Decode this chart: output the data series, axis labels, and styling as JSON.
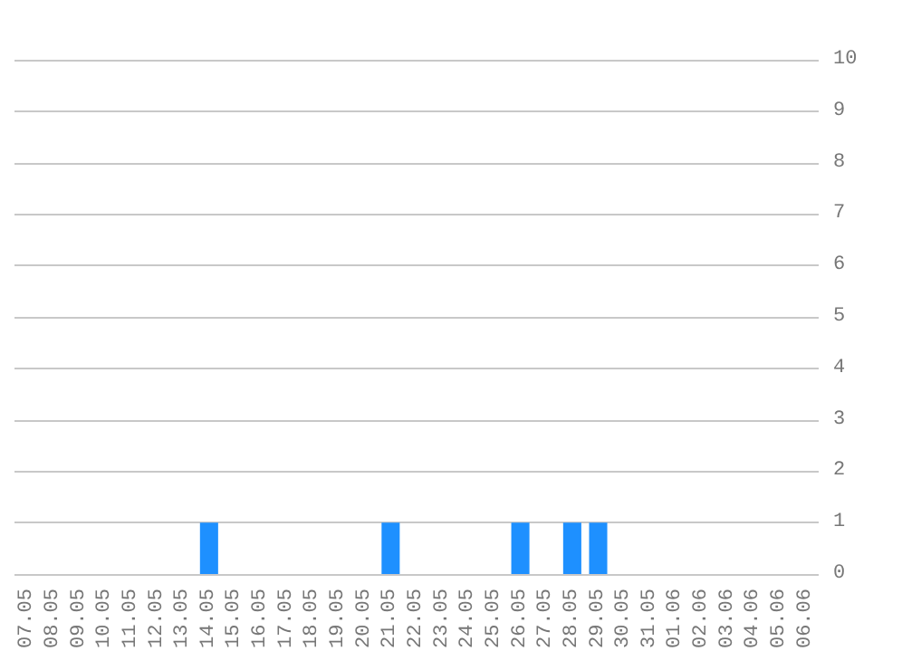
{
  "chart_data": {
    "type": "bar",
    "categories": [
      "07.05",
      "08.05",
      "09.05",
      "10.05",
      "11.05",
      "12.05",
      "13.05",
      "14.05",
      "15.05",
      "16.05",
      "17.05",
      "18.05",
      "19.05",
      "20.05",
      "21.05",
      "22.05",
      "23.05",
      "24.05",
      "25.05",
      "26.05",
      "27.05",
      "28.05",
      "29.05",
      "30.05",
      "31.05",
      "01.06",
      "02.06",
      "03.06",
      "04.06",
      "05.06",
      "06.06"
    ],
    "values": [
      0,
      0,
      0,
      0,
      0,
      0,
      0,
      1,
      0,
      0,
      0,
      0,
      0,
      0,
      1,
      0,
      0,
      0,
      0,
      1,
      0,
      1,
      1,
      0,
      0,
      0,
      0,
      0,
      0,
      0,
      0
    ],
    "color": "#1e90ff",
    "ylim": [
      0,
      10
    ],
    "yticks": [
      0,
      1,
      2,
      3,
      4,
      5,
      6,
      7,
      8,
      9,
      10
    ],
    "grid": "y"
  }
}
